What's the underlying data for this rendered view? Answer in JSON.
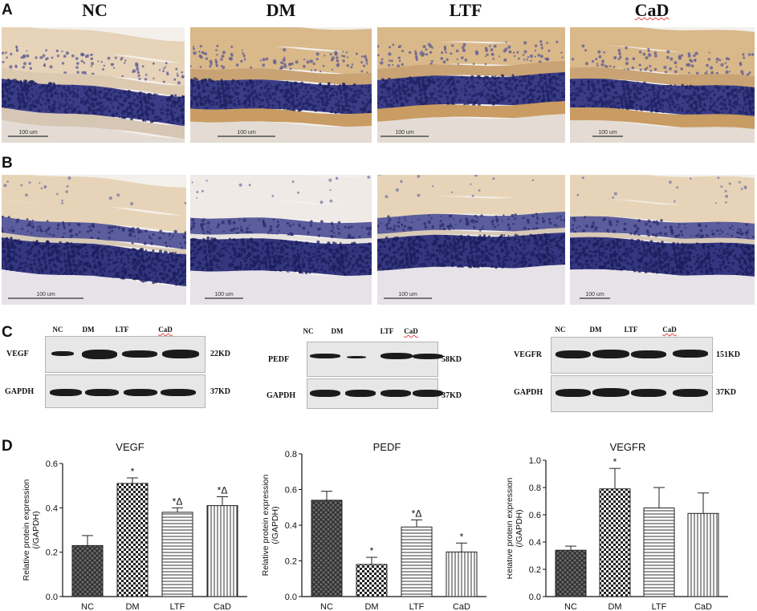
{
  "panels": {
    "A": "A",
    "B": "B",
    "C": "C",
    "D": "D"
  },
  "groups": [
    "NC",
    "DM",
    "LTF",
    "CaD"
  ],
  "histology": {
    "scale_bar_text": "100 um",
    "row_A_colors": {
      "stain": "#d9b88a",
      "nuclear": "#3a3c86"
    },
    "row_B_colors": {
      "stain": "#e7d4b8",
      "nuclear": "#34377f"
    }
  },
  "western_blot": {
    "lanes": [
      "NC",
      "DM",
      "LTF",
      "CaD"
    ],
    "blots": [
      {
        "target": "VEGF",
        "target_kd": "22KD",
        "control": "GAPDH",
        "control_kd": "37KD"
      },
      {
        "target": "PEDF",
        "target_kd": "58KD",
        "control": "GAPDH",
        "control_kd": "37KD"
      },
      {
        "target": "VEGFR",
        "target_kd": "151KD",
        "control": "GAPDH",
        "control_kd": "37KD"
      }
    ]
  },
  "chart_data": [
    {
      "type": "bar",
      "title": "VEGF",
      "ylabel": "Relative protein expression\n(/GAPDH)",
      "categories": [
        "NC",
        "DM",
        "LTF",
        "CaD"
      ],
      "values": [
        0.23,
        0.51,
        0.38,
        0.41
      ],
      "errors": [
        0.045,
        0.025,
        0.02,
        0.04
      ],
      "annotations": [
        "",
        "*",
        "*Δ",
        "*Δ"
      ],
      "ylim": [
        0.0,
        0.6
      ],
      "yticks": [
        "0.0",
        "0.2",
        "0.4",
        "0.6"
      ],
      "patterns": [
        "diagonal-cross",
        "checker",
        "horizontal",
        "vertical"
      ]
    },
    {
      "type": "bar",
      "title": "PEDF",
      "ylabel": "Relative protein expression\n(/GAPDH)",
      "categories": [
        "NC",
        "DM",
        "LTF",
        "CaD"
      ],
      "values": [
        0.54,
        0.18,
        0.39,
        0.25
      ],
      "errors": [
        0.05,
        0.04,
        0.04,
        0.05
      ],
      "annotations": [
        "",
        "*",
        "*Δ",
        "*"
      ],
      "ylim": [
        0.0,
        0.8
      ],
      "yticks": [
        "0.0",
        "0.2",
        "0.4",
        "0.6",
        "0.8"
      ],
      "patterns": [
        "diagonal-cross",
        "checker",
        "horizontal",
        "vertical"
      ]
    },
    {
      "type": "bar",
      "title": "VEGFR",
      "ylabel": "Relative protein expression\n(/GAPDH)",
      "categories": [
        "NC",
        "DM",
        "LTF",
        "CaD"
      ],
      "values": [
        0.34,
        0.79,
        0.65,
        0.61
      ],
      "errors": [
        0.03,
        0.15,
        0.15,
        0.15
      ],
      "annotations": [
        "",
        "*",
        "",
        ""
      ],
      "ylim": [
        0.0,
        1.0
      ],
      "yticks": [
        "0.0",
        "0.2",
        "0.4",
        "0.6",
        "0.8",
        "1.0"
      ],
      "patterns": [
        "diagonal-cross",
        "checker",
        "horizontal",
        "vertical"
      ]
    }
  ]
}
